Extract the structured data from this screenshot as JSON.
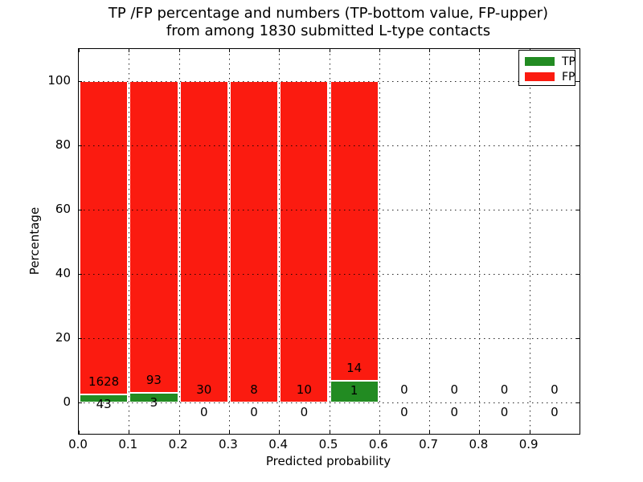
{
  "title": {
    "line1": "TP /FP percentage and numbers (TP-bottom value, FP-upper)",
    "line2": "from among 1830 submitted L-type contacts"
  },
  "axes": {
    "ylabel": "Percentage",
    "xlabel": "Predicted probability",
    "yticks": [
      0,
      20,
      40,
      60,
      80,
      100
    ],
    "xticks": [
      "0.0",
      "0.1",
      "0.2",
      "0.3",
      "0.4",
      "0.5",
      "0.6",
      "0.7",
      "0.8",
      "0.9"
    ]
  },
  "legend": {
    "items": [
      {
        "label": "TP",
        "color": "#228b22"
      },
      {
        "label": "FP",
        "color": "#fb1b10"
      }
    ]
  },
  "colors": {
    "tp": "#228b22",
    "fp": "#fb1b10",
    "bar_edge": "#ffffff",
    "grid": "#000000"
  },
  "chart_data": {
    "type": "bar",
    "stacked": true,
    "normalized": "each bin scaled so TP% + FP% = 100",
    "title": "TP /FP percentage and numbers (TP-bottom value, FP-upper) from among 1830 submitted L-type contacts",
    "xlabel": "Predicted probability",
    "ylabel": "Percentage",
    "xlim": [
      0.0,
      1.0
    ],
    "ylim": [
      -10,
      110
    ],
    "grid": "dotted, drawn above bars",
    "legend_position": "upper right",
    "total_contacts": 1830,
    "categories": [
      "0.0-0.1",
      "0.1-0.2",
      "0.2-0.3",
      "0.3-0.4",
      "0.4-0.5",
      "0.5-0.6",
      "0.6-0.7",
      "0.7-0.8",
      "0.8-0.9",
      "0.9-1.0"
    ],
    "series": [
      {
        "name": "TP",
        "color": "#228b22",
        "counts": [
          43,
          3,
          0,
          0,
          0,
          1,
          0,
          0,
          0,
          0
        ]
      },
      {
        "name": "FP",
        "color": "#fb1b10",
        "counts": [
          1628,
          93,
          30,
          8,
          10,
          14,
          0,
          0,
          0,
          0
        ]
      }
    ],
    "bins": [
      {
        "x_start": 0.0,
        "x_end": 0.1,
        "tp": 43,
        "fp": 1628,
        "tp_pct": 2.57,
        "fp_pct": 97.43
      },
      {
        "x_start": 0.1,
        "x_end": 0.2,
        "tp": 3,
        "fp": 93,
        "tp_pct": 3.13,
        "fp_pct": 96.87
      },
      {
        "x_start": 0.2,
        "x_end": 0.3,
        "tp": 0,
        "fp": 30,
        "tp_pct": 0,
        "fp_pct": 100
      },
      {
        "x_start": 0.3,
        "x_end": 0.4,
        "tp": 0,
        "fp": 8,
        "tp_pct": 0,
        "fp_pct": 100
      },
      {
        "x_start": 0.4,
        "x_end": 0.5,
        "tp": 0,
        "fp": 10,
        "tp_pct": 0,
        "fp_pct": 100
      },
      {
        "x_start": 0.5,
        "x_end": 0.6,
        "tp": 1,
        "fp": 14,
        "tp_pct": 6.67,
        "fp_pct": 93.33
      },
      {
        "x_start": 0.6,
        "x_end": 0.7,
        "tp": 0,
        "fp": 0
      },
      {
        "x_start": 0.7,
        "x_end": 0.8,
        "tp": 0,
        "fp": 0
      },
      {
        "x_start": 0.8,
        "x_end": 0.9,
        "tp": 0,
        "fp": 0
      },
      {
        "x_start": 0.9,
        "x_end": 1.0,
        "tp": 0,
        "fp": 0
      }
    ]
  }
}
